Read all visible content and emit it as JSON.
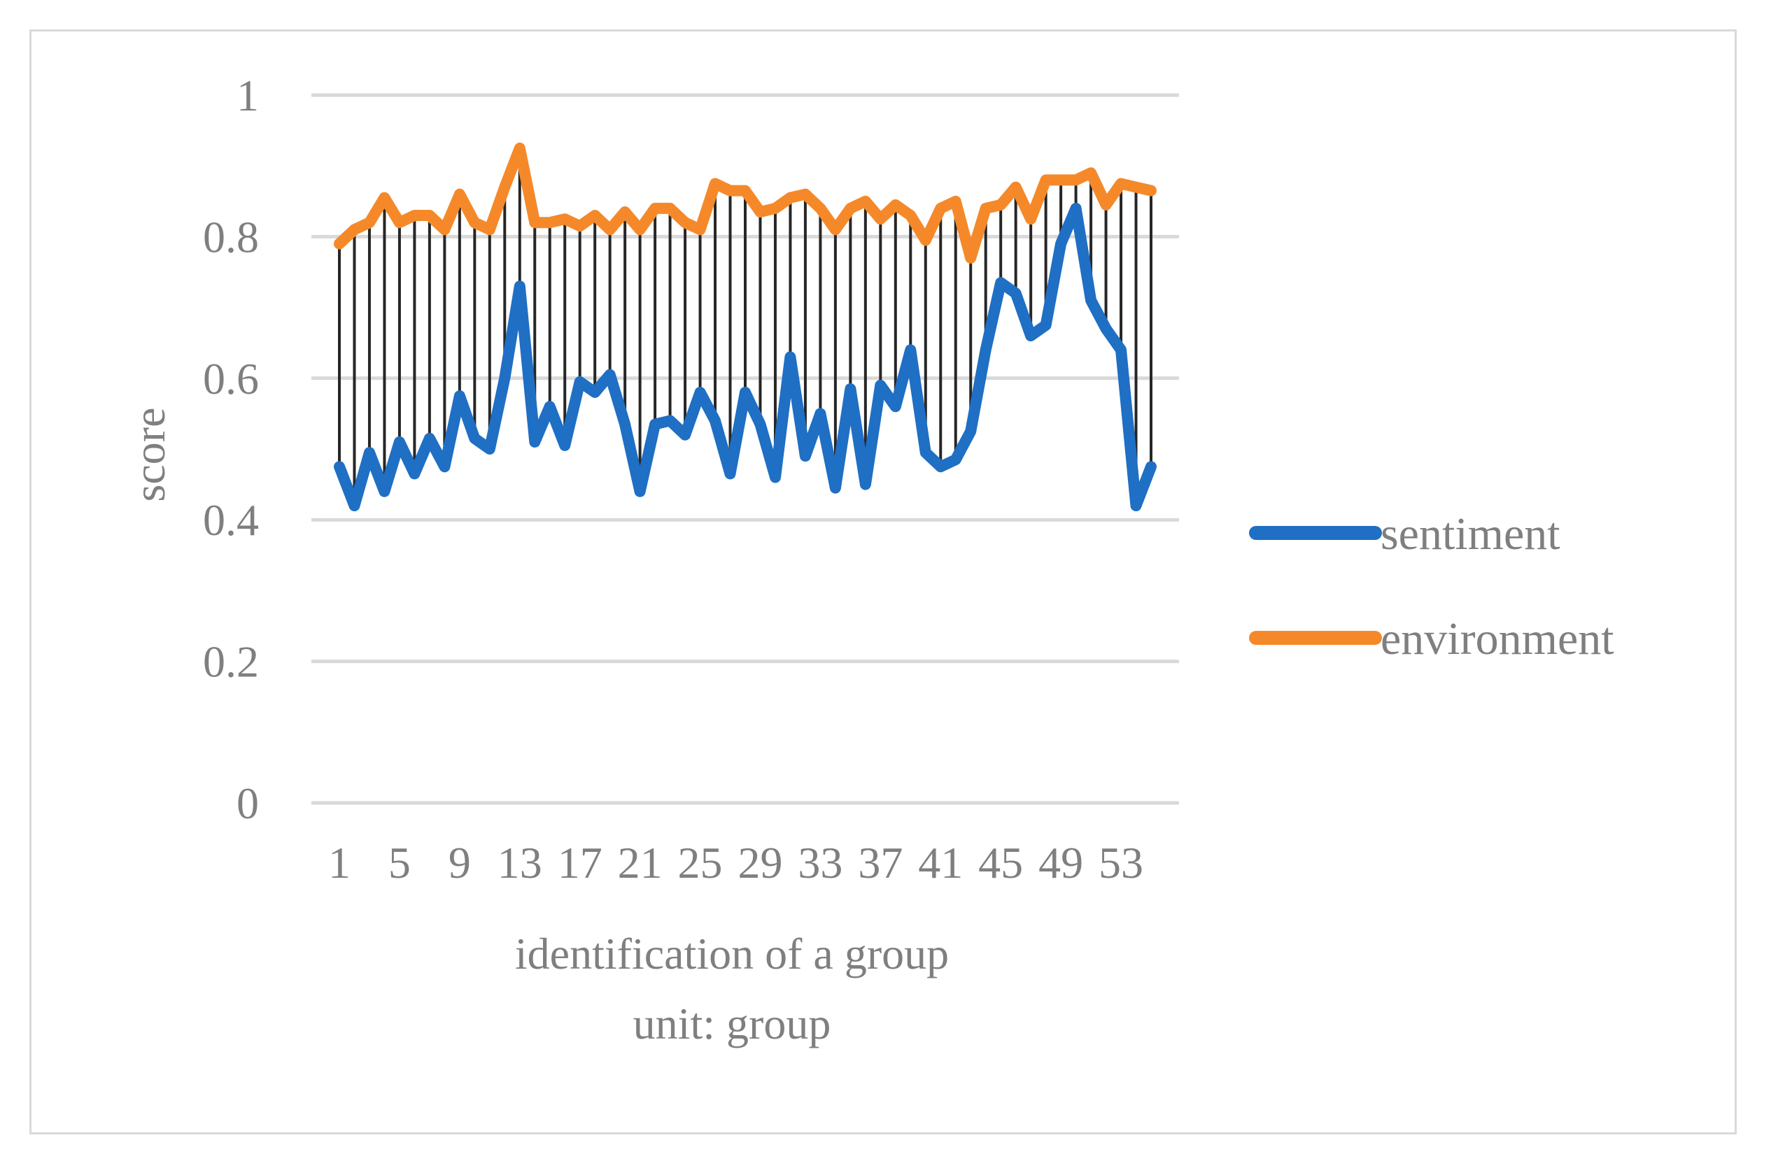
{
  "chart_data": {
    "type": "line",
    "title": "",
    "xlabel": "identification of a group",
    "xlabel_unit": "unit: group",
    "ylabel": "score",
    "ylim": [
      0,
      1
    ],
    "yticks": [
      "0",
      "0.2",
      "0.4",
      "0.6",
      "0.8",
      "1"
    ],
    "ytick_values": [
      0,
      0.2,
      0.4,
      0.6,
      0.8,
      1
    ],
    "xticks": [
      "1",
      "5",
      "9",
      "13",
      "17",
      "21",
      "25",
      "29",
      "33",
      "37",
      "41",
      "45",
      "49",
      "53"
    ],
    "xtick_values": [
      1,
      5,
      9,
      13,
      17,
      21,
      25,
      29,
      33,
      37,
      41,
      45,
      49,
      53
    ],
    "x": [
      1,
      2,
      3,
      4,
      5,
      6,
      7,
      8,
      9,
      10,
      11,
      12,
      13,
      14,
      15,
      16,
      17,
      18,
      19,
      20,
      21,
      22,
      23,
      24,
      25,
      26,
      27,
      28,
      29,
      30,
      31,
      32,
      33,
      34,
      35,
      36,
      37,
      38,
      39,
      40,
      41,
      42,
      43,
      44,
      45,
      46,
      47,
      48,
      49,
      50,
      51,
      52,
      53,
      54,
      55
    ],
    "grid": true,
    "legend_position": "right",
    "high_low_lines": true,
    "series": [
      {
        "name": "sentiment",
        "color": "#1f6fc4",
        "values": [
          0.475,
          0.42,
          0.495,
          0.44,
          0.51,
          0.465,
          0.515,
          0.475,
          0.575,
          0.515,
          0.5,
          0.6,
          0.73,
          0.51,
          0.56,
          0.505,
          0.595,
          0.58,
          0.605,
          0.535,
          0.44,
          0.535,
          0.54,
          0.52,
          0.58,
          0.54,
          0.465,
          0.58,
          0.535,
          0.46,
          0.63,
          0.49,
          0.55,
          0.445,
          0.585,
          0.45,
          0.59,
          0.56,
          0.64,
          0.495,
          0.475,
          0.485,
          0.525,
          0.64,
          0.735,
          0.72,
          0.66,
          0.675,
          0.79,
          0.84,
          0.71,
          0.67,
          0.64,
          0.42,
          0.475
        ]
      },
      {
        "name": "environment",
        "color": "#f5892a",
        "values": [
          0.79,
          0.81,
          0.82,
          0.855,
          0.82,
          0.83,
          0.83,
          0.81,
          0.86,
          0.82,
          0.81,
          0.87,
          0.925,
          0.82,
          0.82,
          0.825,
          0.815,
          0.83,
          0.81,
          0.835,
          0.81,
          0.84,
          0.84,
          0.82,
          0.81,
          0.875,
          0.865,
          0.865,
          0.835,
          0.84,
          0.855,
          0.86,
          0.84,
          0.81,
          0.84,
          0.85,
          0.825,
          0.845,
          0.83,
          0.795,
          0.84,
          0.85,
          0.77,
          0.84,
          0.845,
          0.87,
          0.825,
          0.88,
          0.88,
          0.88,
          0.89,
          0.845,
          0.875,
          0.87,
          0.865
        ]
      }
    ]
  }
}
